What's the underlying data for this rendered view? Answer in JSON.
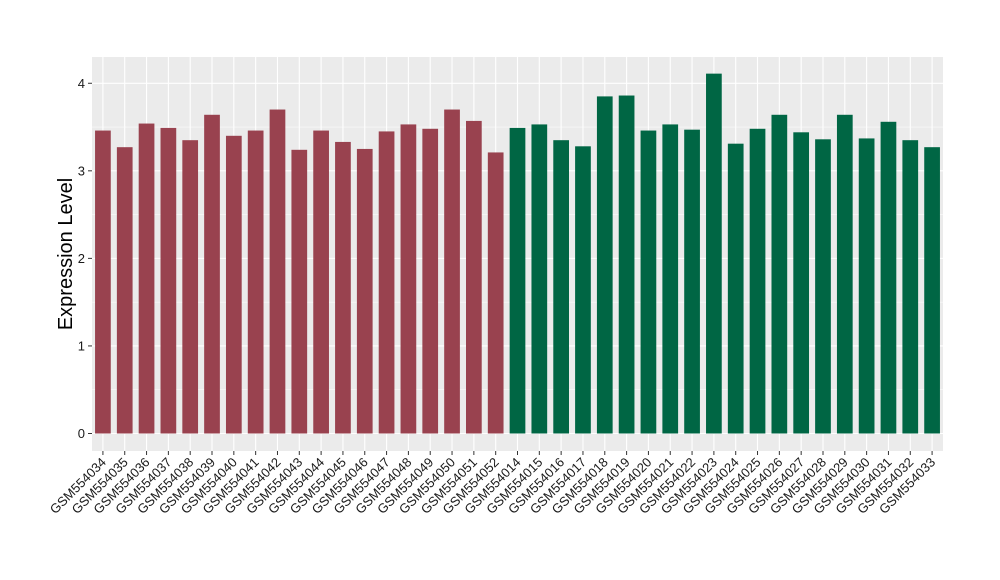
{
  "chart_data": {
    "type": "bar",
    "title": "",
    "xlabel": "",
    "ylabel": "Expression Level",
    "ylim": [
      -0.2,
      4.3
    ],
    "yticks": [
      0,
      1,
      2,
      3,
      4
    ],
    "grid": true,
    "legend": "none",
    "categories": [
      "GSM554034",
      "GSM554035",
      "GSM554036",
      "GSM554037",
      "GSM554038",
      "GSM554039",
      "GSM554040",
      "GSM554041",
      "GSM554042",
      "GSM554043",
      "GSM554044",
      "GSM554045",
      "GSM554046",
      "GSM554047",
      "GSM554048",
      "GSM554049",
      "GSM554050",
      "GSM554051",
      "GSM554052",
      "GSM554014",
      "GSM554015",
      "GSM554016",
      "GSM554017",
      "GSM554018",
      "GSM554019",
      "GSM554020",
      "GSM554021",
      "GSM554022",
      "GSM554023",
      "GSM554024",
      "GSM554025",
      "GSM554026",
      "GSM554027",
      "GSM554028",
      "GSM554029",
      "GSM554030",
      "GSM554031",
      "GSM554032",
      "GSM554033"
    ],
    "values": [
      3.46,
      3.27,
      3.54,
      3.49,
      3.35,
      3.64,
      3.4,
      3.46,
      3.7,
      3.24,
      3.46,
      3.33,
      3.25,
      3.45,
      3.53,
      3.48,
      3.7,
      3.57,
      3.21,
      3.49,
      3.53,
      3.35,
      3.28,
      3.85,
      3.86,
      3.46,
      3.53,
      3.47,
      4.11,
      3.31,
      3.48,
      3.64,
      3.44,
      3.36,
      3.64,
      3.37,
      3.56,
      3.35,
      3.27
    ],
    "bar_colors": [
      "#99424f",
      "#99424f",
      "#99424f",
      "#99424f",
      "#99424f",
      "#99424f",
      "#99424f",
      "#99424f",
      "#99424f",
      "#99424f",
      "#99424f",
      "#99424f",
      "#99424f",
      "#99424f",
      "#99424f",
      "#99424f",
      "#99424f",
      "#99424f",
      "#99424f",
      "#006644",
      "#006644",
      "#006644",
      "#006644",
      "#006644",
      "#006644",
      "#006644",
      "#006644",
      "#006644",
      "#006644",
      "#006644",
      "#006644",
      "#006644",
      "#006644",
      "#006644",
      "#006644",
      "#006644",
      "#006644",
      "#006644",
      "#006644"
    ],
    "panel_background": "#ebebeb",
    "gridline_color": "#ffffff"
  }
}
